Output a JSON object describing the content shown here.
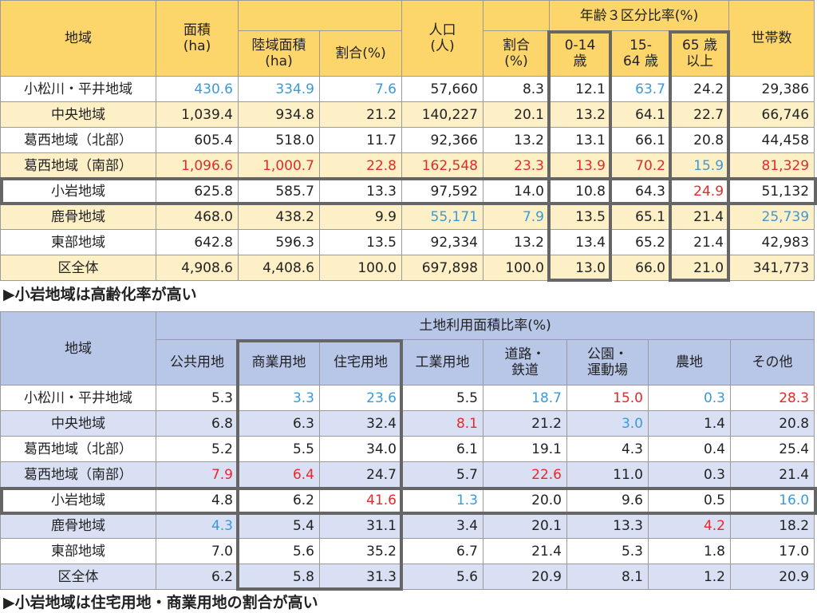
{
  "table1": {
    "header_row1": [
      "地域",
      "面積\n(ha)",
      "人口\n(人)",
      "年齢３区分比率(%)",
      "世帯数"
    ],
    "header_row2": [
      "陸域面積\n(ha)",
      "割合(%)",
      "割合\n(%)",
      "0-14\n歳",
      "15-\n64 歳",
      "65 歳\n以上"
    ],
    "rows": [
      [
        "小松川・平井地域",
        "430.6",
        "334.9",
        "7.6",
        "57,660",
        "8.3",
        "12.1",
        "63.7",
        "24.2",
        "29,386"
      ],
      [
        "中央地域",
        "1,039.4",
        "934.8",
        "21.2",
        "140,227",
        "20.1",
        "13.2",
        "64.1",
        "22.7",
        "66,746"
      ],
      [
        "葛西地域（北部）",
        "605.4",
        "518.0",
        "11.7",
        "92,366",
        "13.2",
        "13.1",
        "66.1",
        "20.8",
        "44,458"
      ],
      [
        "葛西地域（南部）",
        "1,096.6",
        "1,000.7",
        "22.8",
        "162,548",
        "23.3",
        "13.9",
        "70.2",
        "15.9",
        "81,329"
      ],
      [
        "小岩地域",
        "625.8",
        "585.7",
        "13.3",
        "97,592",
        "14.0",
        "10.8",
        "64.3",
        "24.9",
        "51,132"
      ],
      [
        "鹿骨地域",
        "468.0",
        "438.2",
        "9.9",
        "55,171",
        "7.9",
        "13.5",
        "65.1",
        "21.4",
        "25,739"
      ],
      [
        "東部地域",
        "642.8",
        "596.3",
        "13.5",
        "92,334",
        "13.2",
        "13.4",
        "65.2",
        "21.4",
        "42,983"
      ],
      [
        "区全体",
        "4,908.6",
        "4,408.6",
        "100.0",
        "697,898",
        "100.0",
        "13.0",
        "66.0",
        "21.0",
        "341,773"
      ]
    ],
    "colors": [
      [
        null,
        "#3a9ad9",
        "#3a9ad9",
        "#3a9ad9",
        null,
        null,
        null,
        "#3a9ad9",
        null,
        null
      ],
      [
        null,
        null,
        null,
        null,
        null,
        null,
        null,
        null,
        null,
        null
      ],
      [
        null,
        null,
        null,
        null,
        null,
        null,
        null,
        null,
        null,
        null
      ],
      [
        null,
        "#e52a2a",
        "#e52a2a",
        "#e52a2a",
        "#e52a2a",
        "#e52a2a",
        "#e52a2a",
        "#e52a2a",
        "#3a9ad9",
        "#e52a2a"
      ],
      [
        null,
        null,
        null,
        null,
        null,
        null,
        null,
        null,
        "#e52a2a",
        null
      ],
      [
        null,
        null,
        null,
        null,
        "#3a9ad9",
        "#3a9ad9",
        null,
        null,
        null,
        "#3a9ad9"
      ],
      [
        null,
        null,
        null,
        null,
        null,
        null,
        null,
        null,
        null,
        null
      ],
      [
        null,
        null,
        null,
        null,
        null,
        null,
        null,
        null,
        null,
        null
      ]
    ],
    "caption": "▶小岩地域は高齢化率が高い"
  },
  "table2": {
    "header_row1": [
      "地域",
      "土地利用面積比率(%)"
    ],
    "header_row2": [
      "公共用地",
      "商業用地",
      "住宅用地",
      "工業用地",
      "道路・\n鉄道",
      "公園・\n運動場",
      "農地",
      "その他"
    ],
    "rows": [
      [
        "小松川・平井地域",
        "5.3",
        "3.3",
        "23.6",
        "5.5",
        "18.7",
        "15.0",
        "0.3",
        "28.3"
      ],
      [
        "中央地域",
        "6.8",
        "6.3",
        "32.4",
        "8.1",
        "21.2",
        "3.0",
        "1.4",
        "20.8"
      ],
      [
        "葛西地域（北部）",
        "5.2",
        "5.5",
        "34.0",
        "6.1",
        "19.1",
        "4.3",
        "0.4",
        "25.4"
      ],
      [
        "葛西地域（南部）",
        "7.9",
        "6.4",
        "24.7",
        "5.7",
        "22.6",
        "11.0",
        "0.3",
        "21.4"
      ],
      [
        "小岩地域",
        "4.8",
        "6.2",
        "41.6",
        "1.3",
        "20.0",
        "9.6",
        "0.5",
        "16.0"
      ],
      [
        "鹿骨地域",
        "4.3",
        "5.4",
        "31.1",
        "3.4",
        "20.1",
        "13.3",
        "4.2",
        "18.2"
      ],
      [
        "東部地域",
        "7.0",
        "5.6",
        "35.2",
        "6.7",
        "21.4",
        "5.3",
        "1.8",
        "17.0"
      ],
      [
        "区全体",
        "6.2",
        "5.8",
        "31.3",
        "5.6",
        "20.9",
        "8.1",
        "1.2",
        "20.9"
      ]
    ],
    "colors": [
      [
        null,
        null,
        "#3a9ad9",
        "#3a9ad9",
        null,
        "#3a9ad9",
        "#e52a2a",
        "#3a9ad9",
        "#e52a2a"
      ],
      [
        null,
        null,
        null,
        null,
        "#e52a2a",
        null,
        "#3a9ad9",
        null,
        null
      ],
      [
        null,
        null,
        null,
        null,
        null,
        null,
        null,
        null,
        null
      ],
      [
        null,
        "#e52a2a",
        "#e52a2a",
        null,
        null,
        "#e52a2a",
        null,
        null,
        null
      ],
      [
        null,
        null,
        null,
        "#e52a2a",
        "#3a9ad9",
        null,
        null,
        null,
        "#3a9ad9"
      ],
      [
        null,
        "#3a9ad9",
        null,
        null,
        null,
        null,
        null,
        "#e52a2a",
        null
      ],
      [
        null,
        null,
        null,
        null,
        null,
        null,
        null,
        null,
        null
      ],
      [
        null,
        null,
        null,
        null,
        null,
        null,
        null,
        null,
        null
      ]
    ],
    "caption": "▶小岩地域は住宅用地・商業用地の割合が高い"
  }
}
